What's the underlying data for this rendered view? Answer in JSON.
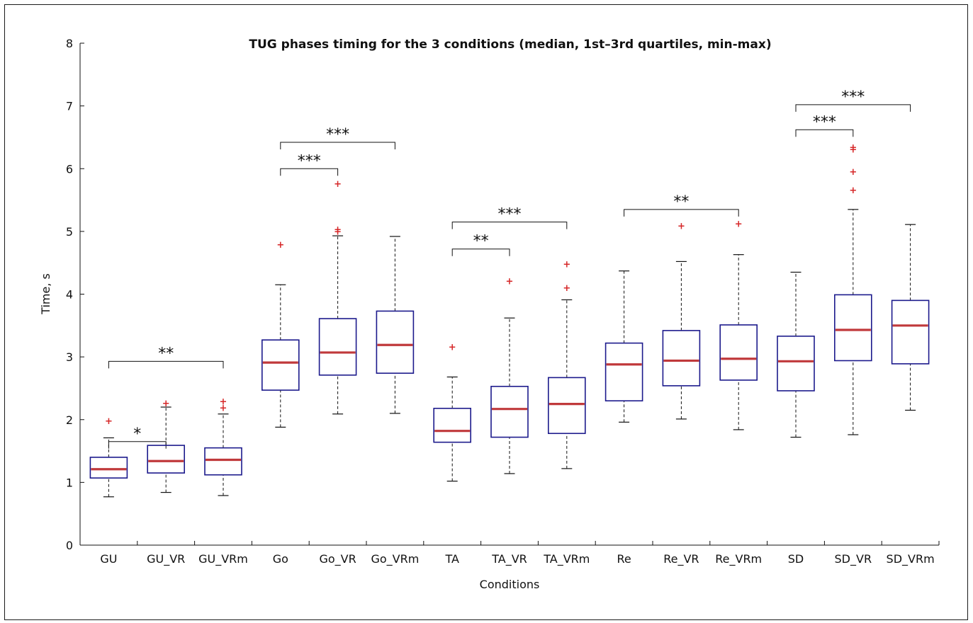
{
  "chart_data": {
    "type": "box",
    "title": "TUG phases timing for the 3 conditions (median, 1st–3rd quartiles, min-max)",
    "xlabel": "Conditions",
    "ylabel": "Time, s",
    "ylim": [
      0,
      8
    ],
    "yticks": [
      "0",
      "1",
      "2",
      "3",
      "4",
      "5",
      "6",
      "7",
      "8"
    ],
    "categories": [
      "GU",
      "GU_VR",
      "GU_VRm",
      "Go",
      "Go_VR",
      "Go_VRm",
      "TA",
      "TA_VR",
      "TA_VRm",
      "Re",
      "Re_VR",
      "Re_VRm",
      "SD",
      "SD_VR",
      "SD_VRm"
    ],
    "boxes": [
      {
        "min": 0.77,
        "q1": 1.07,
        "median": 1.21,
        "q3": 1.4,
        "max": 1.71,
        "outliers": [
          1.98
        ]
      },
      {
        "min": 0.84,
        "q1": 1.15,
        "median": 1.34,
        "q3": 1.59,
        "max": 2.2,
        "outliers": [
          2.26
        ]
      },
      {
        "min": 0.79,
        "q1": 1.12,
        "median": 1.36,
        "q3": 1.55,
        "max": 2.09,
        "outliers": [
          2.19,
          2.29
        ]
      },
      {
        "min": 1.88,
        "q1": 2.47,
        "median": 2.91,
        "q3": 3.27,
        "max": 4.15,
        "outliers": [
          4.79
        ]
      },
      {
        "min": 2.09,
        "q1": 2.71,
        "median": 3.07,
        "q3": 3.61,
        "max": 4.93,
        "outliers": [
          5.0,
          5.03,
          5.76
        ]
      },
      {
        "min": 2.1,
        "q1": 2.74,
        "median": 3.19,
        "q3": 3.73,
        "max": 4.92,
        "outliers": []
      },
      {
        "min": 1.02,
        "q1": 1.64,
        "median": 1.82,
        "q3": 2.18,
        "max": 2.68,
        "outliers": [
          3.16
        ]
      },
      {
        "min": 1.14,
        "q1": 1.72,
        "median": 2.17,
        "q3": 2.53,
        "max": 3.62,
        "outliers": [
          4.21
        ]
      },
      {
        "min": 1.22,
        "q1": 1.78,
        "median": 2.25,
        "q3": 2.67,
        "max": 3.91,
        "outliers": [
          4.1,
          4.48
        ]
      },
      {
        "min": 1.96,
        "q1": 2.3,
        "median": 2.88,
        "q3": 3.22,
        "max": 4.37,
        "outliers": []
      },
      {
        "min": 2.01,
        "q1": 2.54,
        "median": 2.94,
        "q3": 3.42,
        "max": 4.52,
        "outliers": [
          5.09
        ]
      },
      {
        "min": 1.84,
        "q1": 2.63,
        "median": 2.97,
        "q3": 3.51,
        "max": 4.63,
        "outliers": [
          5.12
        ]
      },
      {
        "min": 1.72,
        "q1": 2.46,
        "median": 2.93,
        "q3": 3.33,
        "max": 4.35,
        "outliers": []
      },
      {
        "min": 1.76,
        "q1": 2.94,
        "median": 3.43,
        "q3": 3.99,
        "max": 5.35,
        "outliers": [
          5.66,
          5.95,
          6.31,
          6.34
        ]
      },
      {
        "min": 2.15,
        "q1": 2.89,
        "median": 3.5,
        "q3": 3.9,
        "max": 5.11,
        "outliers": []
      }
    ],
    "significance": [
      {
        "from": 0,
        "to": 1,
        "y": 1.65,
        "label": "*"
      },
      {
        "from": 0,
        "to": 2,
        "y": 2.93,
        "label": "**"
      },
      {
        "from": 3,
        "to": 4,
        "y": 6.0,
        "label": "***"
      },
      {
        "from": 3,
        "to": 5,
        "y": 6.42,
        "label": "***"
      },
      {
        "from": 6,
        "to": 7,
        "y": 4.72,
        "label": "**"
      },
      {
        "from": 6,
        "to": 8,
        "y": 5.15,
        "label": "***"
      },
      {
        "from": 9,
        "to": 11,
        "y": 5.35,
        "label": "**"
      },
      {
        "from": 12,
        "to": 13,
        "y": 6.62,
        "label": "***"
      },
      {
        "from": 12,
        "to": 14,
        "y": 7.02,
        "label": "***"
      }
    ],
    "colors": {
      "box": "#1c1a8c",
      "median": "#c0393b",
      "outlier": "#d62728",
      "whisker": "#111111"
    }
  }
}
